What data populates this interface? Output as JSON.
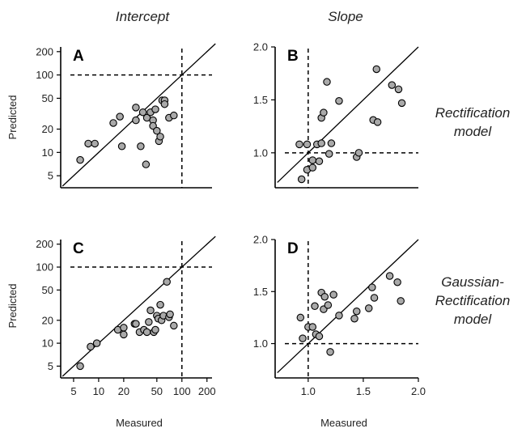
{
  "column_titles": [
    "Intercept",
    "Slope"
  ],
  "row_labels": [
    [
      "Rectification",
      "model"
    ],
    [
      "Gaussian-",
      "Rectification",
      "model"
    ]
  ],
  "axis_titles": {
    "y": "Predicted",
    "x": "Measured"
  },
  "chart_data": [
    {
      "id": "A",
      "type": "scatter",
      "scale": "log",
      "xlim": [
        3.5,
        230
      ],
      "ylim": [
        3.5,
        230
      ],
      "x_ticks": [],
      "x_tick_labels": [],
      "y_ticks": [
        5,
        10,
        20,
        50,
        100,
        200
      ],
      "y_tick_labels": [
        "5",
        "10",
        "20",
        "50",
        "100",
        "200"
      ],
      "ref_x": 100,
      "ref_y": 100,
      "identity_line": true,
      "points": [
        [
          6,
          8
        ],
        [
          7.5,
          13
        ],
        [
          9,
          13
        ],
        [
          15,
          24
        ],
        [
          18,
          29
        ],
        [
          19,
          12
        ],
        [
          28,
          38
        ],
        [
          28,
          26
        ],
        [
          32,
          12
        ],
        [
          34,
          33
        ],
        [
          38,
          28
        ],
        [
          37,
          7
        ],
        [
          42,
          33
        ],
        [
          45,
          26
        ],
        [
          45,
          22
        ],
        [
          48,
          36
        ],
        [
          50,
          19
        ],
        [
          53,
          14
        ],
        [
          55,
          16
        ],
        [
          58,
          47
        ],
        [
          62,
          47
        ],
        [
          62,
          42
        ],
        [
          70,
          28
        ],
        [
          80,
          30
        ]
      ]
    },
    {
      "id": "B",
      "type": "scatter",
      "scale": "linear",
      "xlim": [
        0.7,
        2.0
      ],
      "ylim": [
        0.67,
        2.0
      ],
      "x_ticks": [],
      "x_tick_labels": [],
      "y_ticks": [
        1.0,
        1.5,
        2.0
      ],
      "y_tick_labels": [
        "1.0",
        "1.5",
        "2.0"
      ],
      "ref_x": 1.0,
      "ref_y": 1.0,
      "identity_line": true,
      "points": [
        [
          0.92,
          1.08
        ],
        [
          0.94,
          0.75
        ],
        [
          0.99,
          0.84
        ],
        [
          0.99,
          1.08
        ],
        [
          1.04,
          0.86
        ],
        [
          1.04,
          0.93
        ],
        [
          1.08,
          1.08
        ],
        [
          1.1,
          0.92
        ],
        [
          1.12,
          1.33
        ],
        [
          1.12,
          1.09
        ],
        [
          1.14,
          1.38
        ],
        [
          1.17,
          1.67
        ],
        [
          1.19,
          0.99
        ],
        [
          1.21,
          1.09
        ],
        [
          1.28,
          1.49
        ],
        [
          1.44,
          0.96
        ],
        [
          1.46,
          1.0
        ],
        [
          1.59,
          1.31
        ],
        [
          1.63,
          1.29
        ],
        [
          1.62,
          1.79
        ],
        [
          1.76,
          1.64
        ],
        [
          1.82,
          1.6
        ],
        [
          1.85,
          1.47
        ]
      ]
    },
    {
      "id": "C",
      "type": "scatter",
      "scale": "log",
      "xlim": [
        3.5,
        230
      ],
      "ylim": [
        3.5,
        230
      ],
      "x_ticks": [
        5,
        10,
        20,
        50,
        100,
        200
      ],
      "x_tick_labels": [
        "5",
        "10",
        "20",
        "50",
        "100",
        "200"
      ],
      "y_ticks": [
        5,
        10,
        20,
        50,
        100,
        200
      ],
      "y_tick_labels": [
        "5",
        "10",
        "20",
        "50",
        "100",
        "200"
      ],
      "ref_x": 100,
      "ref_y": 100,
      "identity_line": true,
      "points": [
        [
          6,
          5
        ],
        [
          8,
          9
        ],
        [
          9.5,
          10
        ],
        [
          17,
          15
        ],
        [
          20,
          16
        ],
        [
          20,
          13
        ],
        [
          27,
          18
        ],
        [
          28,
          18
        ],
        [
          31,
          14
        ],
        [
          35,
          15
        ],
        [
          38,
          14
        ],
        [
          40,
          19
        ],
        [
          42,
          27
        ],
        [
          46,
          14
        ],
        [
          48,
          15
        ],
        [
          50,
          23
        ],
        [
          52,
          21
        ],
        [
          55,
          32
        ],
        [
          57,
          20
        ],
        [
          60,
          23
        ],
        [
          66,
          64
        ],
        [
          70,
          22
        ],
        [
          80,
          17
        ],
        [
          72,
          24
        ]
      ]
    },
    {
      "id": "D",
      "type": "scatter",
      "scale": "linear",
      "xlim": [
        0.7,
        2.0
      ],
      "ylim": [
        0.67,
        2.0
      ],
      "x_ticks": [
        1.0,
        1.5,
        2.0
      ],
      "x_tick_labels": [
        "1.0",
        "1.5",
        "2.0"
      ],
      "y_ticks": [
        1.0,
        1.5,
        2.0
      ],
      "y_tick_labels": [
        "1.0",
        "1.5",
        "2.0"
      ],
      "ref_x": 1.0,
      "ref_y": 1.0,
      "identity_line": true,
      "points": [
        [
          0.93,
          1.25
        ],
        [
          0.95,
          1.05
        ],
        [
          1.0,
          1.16
        ],
        [
          1.04,
          1.16
        ],
        [
          1.06,
          1.36
        ],
        [
          1.07,
          1.09
        ],
        [
          1.1,
          1.07
        ],
        [
          1.12,
          1.49
        ],
        [
          1.14,
          1.33
        ],
        [
          1.15,
          1.45
        ],
        [
          1.18,
          1.37
        ],
        [
          1.2,
          0.92
        ],
        [
          1.23,
          1.47
        ],
        [
          1.28,
          1.27
        ],
        [
          1.42,
          1.24
        ],
        [
          1.44,
          1.31
        ],
        [
          1.55,
          1.34
        ],
        [
          1.58,
          1.54
        ],
        [
          1.6,
          1.44
        ],
        [
          1.74,
          1.65
        ],
        [
          1.81,
          1.59
        ],
        [
          1.84,
          1.41
        ]
      ]
    }
  ]
}
